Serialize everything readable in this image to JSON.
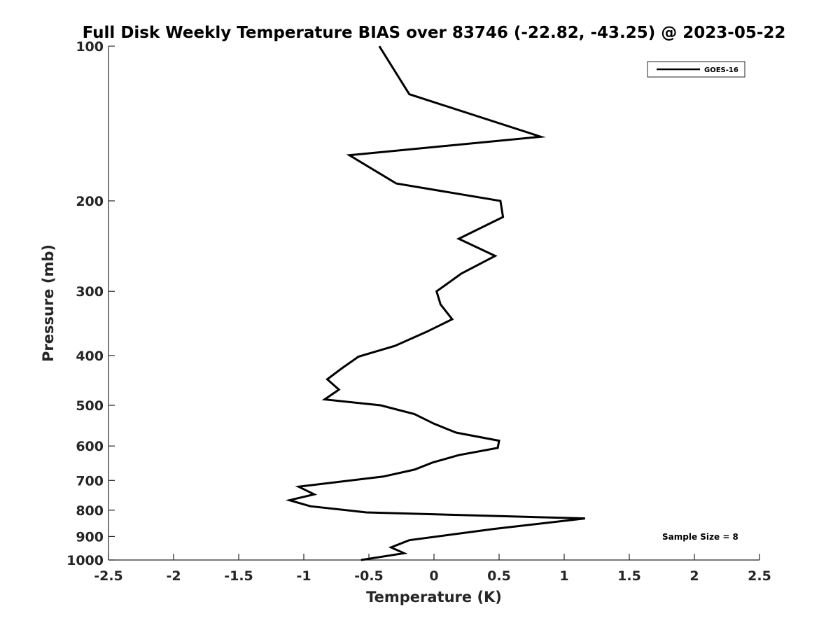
{
  "chart_data": {
    "type": "line",
    "title": "Full Disk Weekly Temperature BIAS over 83746 (-22.82, -43.25) @ 2023-05-22",
    "xlabel": "Temperature (K)",
    "ylabel": "Pressure (mb)",
    "xlim": [
      -2.5,
      2.5
    ],
    "ylim": [
      100,
      1000
    ],
    "yscale": "log",
    "yaxis_reversed": true,
    "xticks": [
      -2.5,
      -2,
      -1.5,
      -1,
      -0.5,
      0,
      0.5,
      1,
      1.5,
      2,
      2.5
    ],
    "xtick_labels": [
      "-2.5",
      "-2",
      "-1.5",
      "-1",
      "-0.5",
      "0",
      "0.5",
      "1",
      "1.5",
      "2",
      "2.5"
    ],
    "yticks": [
      100,
      200,
      300,
      400,
      500,
      600,
      700,
      800,
      900,
      1000
    ],
    "ytick_labels": [
      "100",
      "200",
      "300",
      "400",
      "500",
      "600",
      "700",
      "800",
      "900",
      "1000"
    ],
    "grid": false,
    "legend": {
      "location": "top-right",
      "entries": [
        "GOES-16"
      ]
    },
    "annotation": "Sample Size = 8",
    "series": [
      {
        "name": "GOES-16",
        "color": "#000000",
        "points": [
          {
            "t": -0.42,
            "p": 100
          },
          {
            "t": -0.19,
            "p": 124
          },
          {
            "t": 0.82,
            "p": 150
          },
          {
            "t": -0.65,
            "p": 163
          },
          {
            "t": -0.29,
            "p": 185
          },
          {
            "t": 0.51,
            "p": 200
          },
          {
            "t": 0.53,
            "p": 215
          },
          {
            "t": 0.19,
            "p": 237
          },
          {
            "t": 0.47,
            "p": 256
          },
          {
            "t": 0.21,
            "p": 277
          },
          {
            "t": 0.02,
            "p": 300
          },
          {
            "t": 0.05,
            "p": 318
          },
          {
            "t": 0.14,
            "p": 340
          },
          {
            "t": -0.06,
            "p": 360
          },
          {
            "t": -0.3,
            "p": 383
          },
          {
            "t": -0.58,
            "p": 402
          },
          {
            "t": -0.71,
            "p": 424
          },
          {
            "t": -0.82,
            "p": 445
          },
          {
            "t": -0.73,
            "p": 466
          },
          {
            "t": -0.84,
            "p": 487
          },
          {
            "t": -0.41,
            "p": 500
          },
          {
            "t": -0.15,
            "p": 520
          },
          {
            "t": 0.0,
            "p": 543
          },
          {
            "t": 0.17,
            "p": 565
          },
          {
            "t": 0.5,
            "p": 586
          },
          {
            "t": 0.49,
            "p": 605
          },
          {
            "t": 0.19,
            "p": 625
          },
          {
            "t": -0.01,
            "p": 646
          },
          {
            "t": -0.15,
            "p": 667
          },
          {
            "t": -0.39,
            "p": 688
          },
          {
            "t": -1.04,
            "p": 720
          },
          {
            "t": -0.92,
            "p": 745
          },
          {
            "t": -1.11,
            "p": 765
          },
          {
            "t": -0.95,
            "p": 786
          },
          {
            "t": -0.52,
            "p": 808
          },
          {
            "t": 1.16,
            "p": 830
          },
          {
            "t": 0.46,
            "p": 870
          },
          {
            "t": -0.19,
            "p": 915
          },
          {
            "t": -0.33,
            "p": 945
          },
          {
            "t": -0.23,
            "p": 970
          },
          {
            "t": -0.56,
            "p": 1000
          }
        ]
      }
    ]
  }
}
